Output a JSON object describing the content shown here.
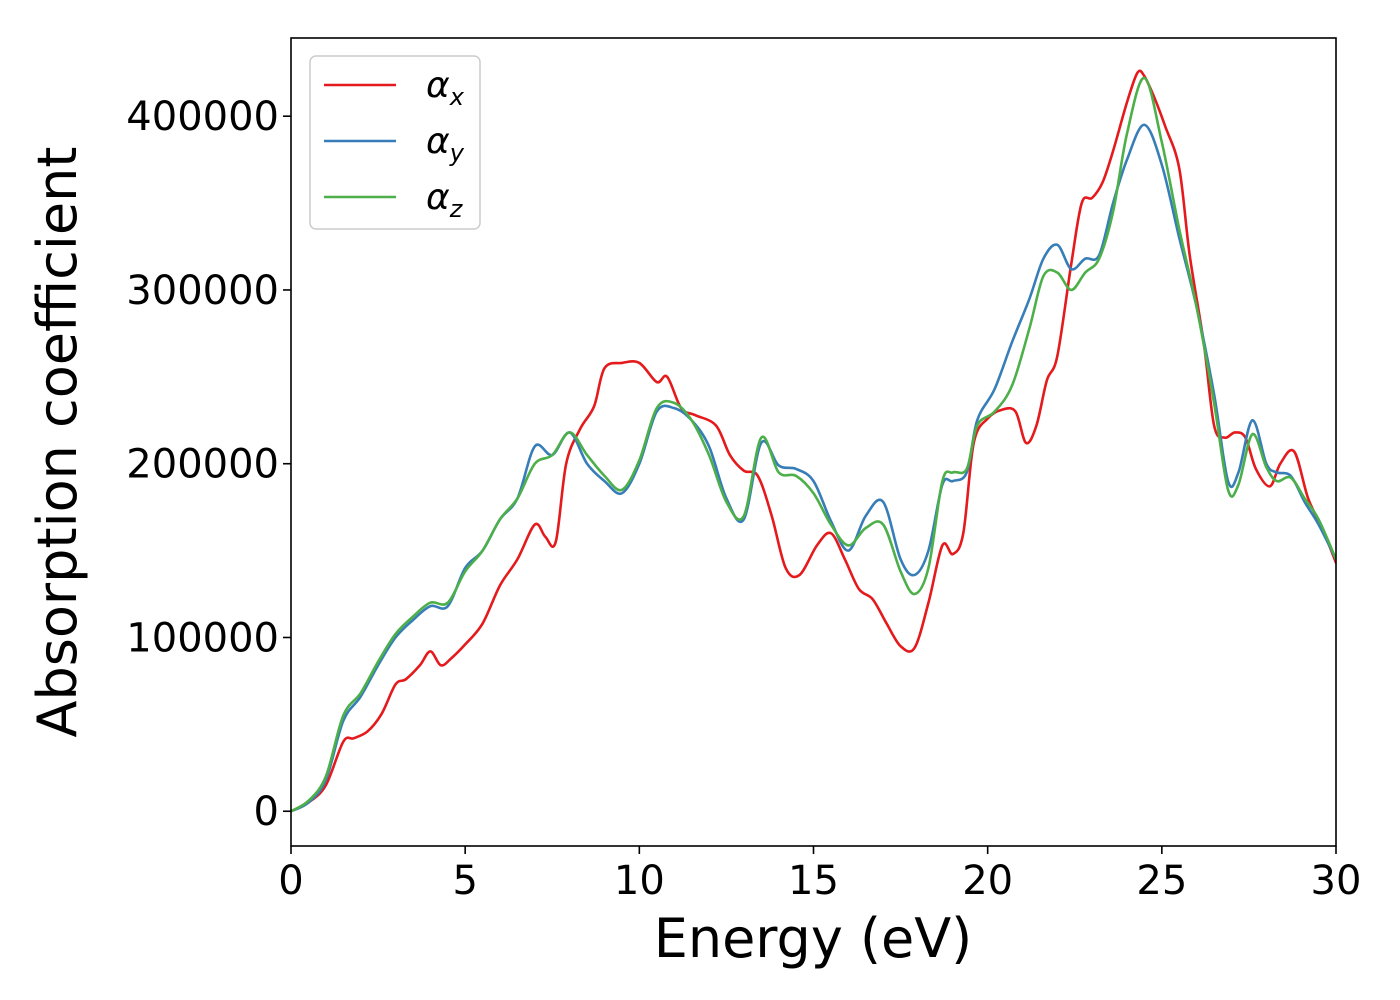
{
  "chart_data": {
    "type": "line",
    "title": "",
    "xlabel": "Energy (eV)",
    "ylabel": "Absorption coefficient",
    "xlim": [
      0,
      30
    ],
    "ylim": [
      -20000,
      445000
    ],
    "xticks": [
      0,
      5,
      10,
      15,
      20,
      25,
      30
    ],
    "xtick_labels": [
      "0",
      "5",
      "10",
      "15",
      "20",
      "25",
      "30"
    ],
    "yticks": [
      0,
      100000,
      200000,
      300000,
      400000
    ],
    "ytick_labels": [
      "0",
      "100000",
      "200000",
      "300000",
      "400000"
    ],
    "grid": false,
    "legend_position": "top-left",
    "series": [
      {
        "name": "α",
        "subscript": "x",
        "color": "#e41a1c",
        "x": [
          0,
          0.5,
          1,
          1.5,
          1.8,
          2.2,
          2.6,
          3,
          3.3,
          3.7,
          4,
          4.3,
          4.6,
          5,
          5.5,
          6,
          6.5,
          7,
          7.3,
          7.6,
          7.9,
          8.3,
          8.7,
          9,
          9.5,
          10,
          10.5,
          10.8,
          11.2,
          11.6,
          12.2,
          12.6,
          13,
          13.4,
          13.8,
          14.2,
          14.6,
          15.1,
          15.5,
          15.9,
          16.3,
          16.7,
          17.1,
          17.5,
          17.9,
          18.3,
          18.7,
          19,
          19.3,
          19.6,
          20,
          20.4,
          20.8,
          21.1,
          21.4,
          21.7,
          22,
          22.4,
          22.7,
          23,
          23.3,
          23.6,
          24,
          24.3,
          24.5,
          24.8,
          25.1,
          25.5,
          25.8,
          26.2,
          26.5,
          26.8,
          27.1,
          27.4,
          27.7,
          28.1,
          28.4,
          28.8,
          29.2,
          29.6,
          30
        ],
        "values": [
          0,
          5000,
          15000,
          40000,
          42000,
          46000,
          56000,
          73000,
          76000,
          84000,
          92000,
          84000,
          88000,
          96000,
          108000,
          130000,
          145000,
          165000,
          158000,
          155000,
          200000,
          220000,
          233000,
          255000,
          258000,
          258000,
          247000,
          250000,
          232000,
          228000,
          222000,
          205000,
          196000,
          193000,
          170000,
          140000,
          136000,
          153000,
          160000,
          145000,
          128000,
          122000,
          108000,
          95000,
          94000,
          120000,
          153000,
          148000,
          160000,
          212000,
          226000,
          231000,
          230000,
          212000,
          222000,
          248000,
          262000,
          315000,
          350000,
          353000,
          362000,
          380000,
          408000,
          425000,
          423000,
          410000,
          394000,
          370000,
          320000,
          270000,
          222000,
          215000,
          218000,
          215000,
          197000,
          187000,
          200000,
          207000,
          180000,
          163000,
          143000
        ]
      },
      {
        "name": "α",
        "subscript": "y",
        "color": "#377eb8",
        "x": [
          0,
          0.5,
          1,
          1.5,
          2,
          2.5,
          3,
          3.5,
          4,
          4.5,
          5,
          5.5,
          6,
          6.5,
          7,
          7.5,
          8,
          8.5,
          9,
          9.5,
          10,
          10.5,
          11,
          11.5,
          12,
          12.5,
          13,
          13.5,
          14,
          14.5,
          15,
          15.5,
          16,
          16.5,
          17,
          17.5,
          17.9,
          18.3,
          18.7,
          19,
          19.4,
          19.7,
          20.2,
          20.7,
          21.2,
          21.6,
          22,
          22.4,
          22.8,
          23.2,
          23.6,
          24,
          24.5,
          25,
          25.5,
          26,
          26.5,
          26.9,
          27.2,
          27.6,
          28,
          28.3,
          28.7,
          29.1,
          29.5,
          30
        ],
        "values": [
          0,
          5000,
          18000,
          52000,
          66000,
          84000,
          100000,
          110000,
          118000,
          118000,
          140000,
          150000,
          168000,
          180000,
          210000,
          205000,
          218000,
          200000,
          190000,
          183000,
          200000,
          230000,
          232000,
          225000,
          210000,
          180000,
          168000,
          212000,
          199000,
          197000,
          190000,
          167000,
          150000,
          170000,
          178000,
          145000,
          136000,
          150000,
          188000,
          190000,
          195000,
          225000,
          243000,
          270000,
          295000,
          318000,
          326000,
          312000,
          318000,
          320000,
          350000,
          375000,
          395000,
          372000,
          330000,
          290000,
          240000,
          190000,
          195000,
          225000,
          200000,
          195000,
          193000,
          178000,
          165000,
          145000
        ]
      },
      {
        "name": "α",
        "subscript": "z",
        "color": "#4daf4a",
        "x": [
          0,
          0.5,
          1,
          1.5,
          2,
          2.5,
          3,
          3.5,
          4,
          4.5,
          5,
          5.5,
          6,
          6.5,
          7,
          7.5,
          8,
          8.5,
          9,
          9.5,
          10,
          10.5,
          11,
          11.5,
          12,
          12.5,
          13,
          13.5,
          14,
          14.5,
          15,
          15.5,
          16,
          16.5,
          17,
          17.5,
          17.9,
          18.3,
          18.7,
          19,
          19.4,
          19.7,
          20.2,
          20.7,
          21.2,
          21.6,
          22,
          22.4,
          22.8,
          23.2,
          23.6,
          24,
          24.5,
          25,
          25.5,
          26,
          26.5,
          26.9,
          27.2,
          27.6,
          28,
          28.3,
          28.7,
          29.1,
          29.5,
          30
        ],
        "values": [
          0,
          6000,
          20000,
          55000,
          68000,
          86000,
          102000,
          112000,
          120000,
          120000,
          138000,
          150000,
          168000,
          180000,
          200000,
          205000,
          218000,
          205000,
          193000,
          185000,
          202000,
          232000,
          235000,
          225000,
          205000,
          178000,
          170000,
          215000,
          195000,
          193000,
          183000,
          165000,
          153000,
          163000,
          165000,
          138000,
          125000,
          140000,
          190000,
          195000,
          197000,
          222000,
          230000,
          245000,
          278000,
          308000,
          310000,
          300000,
          310000,
          318000,
          345000,
          390000,
          422000,
          385000,
          335000,
          290000,
          235000,
          185000,
          188000,
          217000,
          198000,
          190000,
          192000,
          180000,
          168000,
          145000
        ]
      }
    ]
  }
}
